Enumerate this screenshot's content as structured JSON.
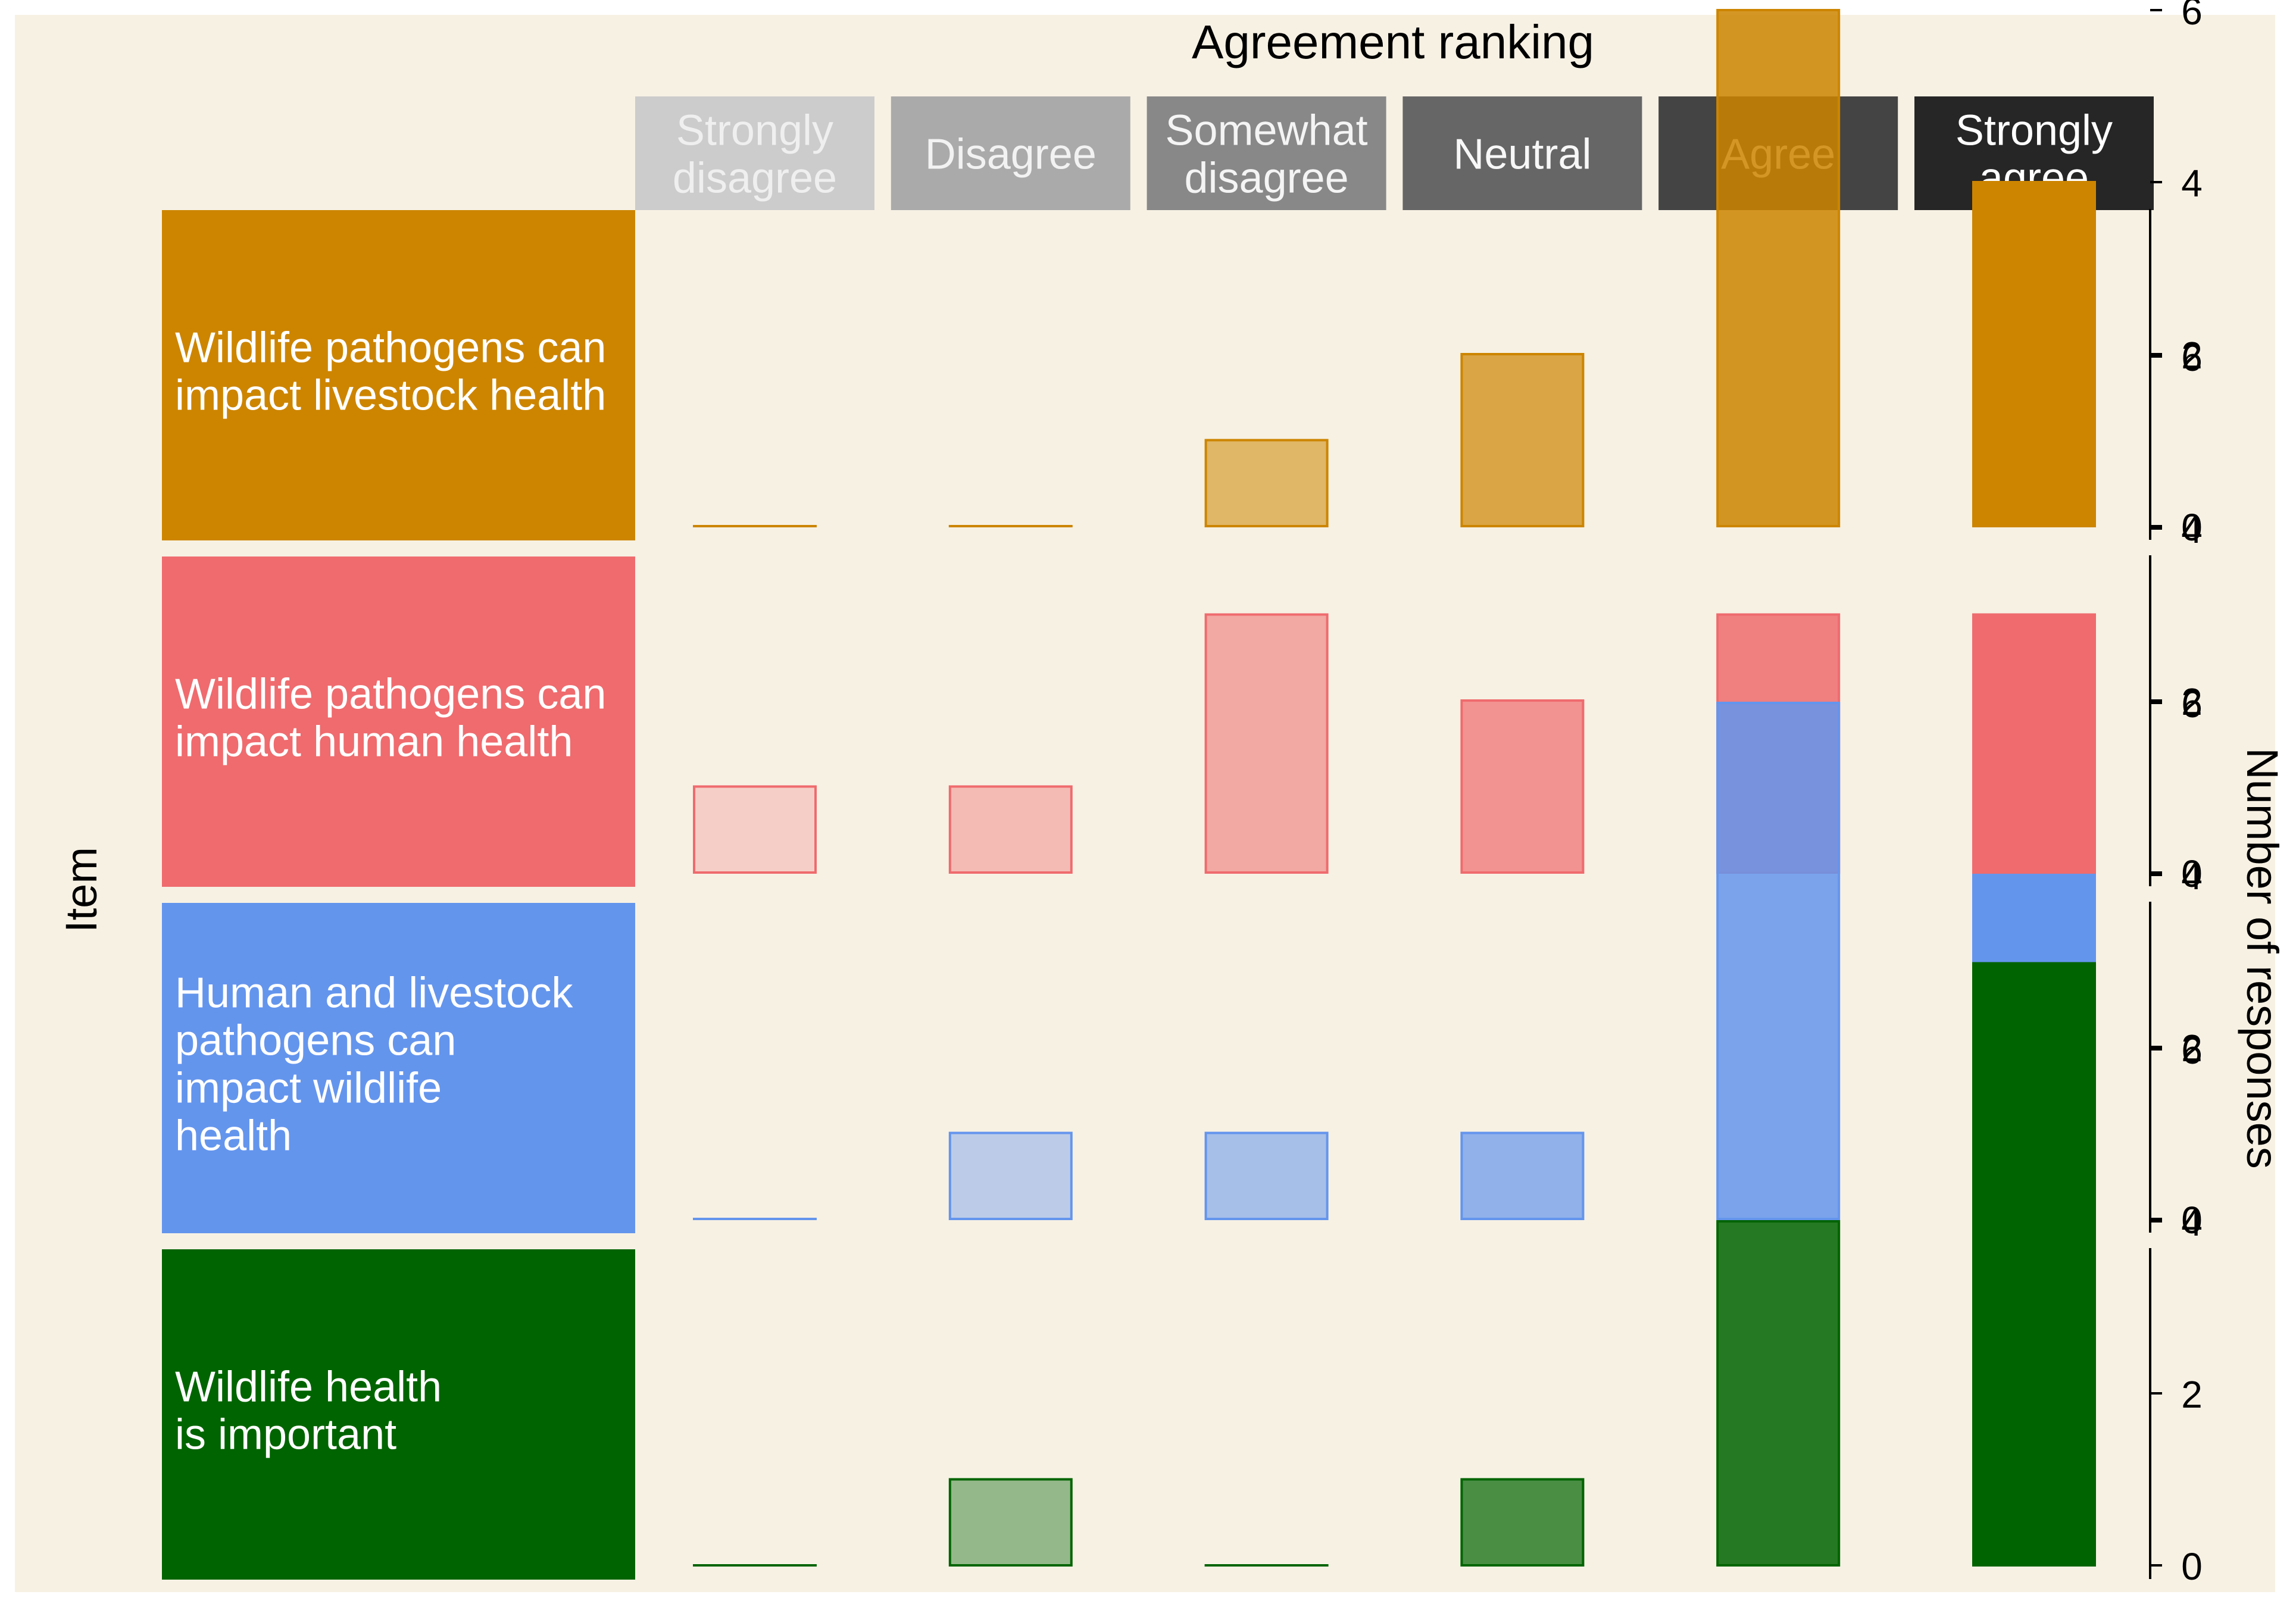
{
  "chart_data": {
    "type": "bar",
    "title": "Agreement ranking",
    "xlabel": "Item",
    "ylabel": "Number of responses",
    "ylim": [
      0,
      7.3
    ],
    "yticks": [
      0,
      2,
      4,
      6
    ],
    "grid": false,
    "categories": [
      {
        "label": [
          "Strongly",
          "disagree"
        ],
        "color": "#cccccc",
        "text_color": "#efefef"
      },
      {
        "label": [
          "Disagree"
        ],
        "color": "#aaaaaa",
        "text_color": "#f2f2f2"
      },
      {
        "label": [
          "Somewhat",
          "disagree"
        ],
        "color": "#888888",
        "text_color": "#f4f4f4"
      },
      {
        "label": [
          "Neutral"
        ],
        "color": "#666666",
        "text_color": "#f7f7f7"
      },
      {
        "label": [
          "Agree"
        ],
        "color": "#444444",
        "text_color": "#ffffff"
      },
      {
        "label": [
          "Strongly",
          "agree"
        ],
        "color": "#262626",
        "text_color": "#ffffff"
      }
    ],
    "series": [
      {
        "name": [
          "Wildlife pathogens can",
          "impact livestock health"
        ],
        "color": "#cd8500",
        "values": [
          0,
          0,
          1,
          2,
          6,
          4
        ]
      },
      {
        "name": [
          "Wildlife pathogens can",
          "impact human health"
        ],
        "color": "#ef6b6e",
        "values": [
          1,
          1,
          3,
          2,
          3,
          3
        ]
      },
      {
        "name": [
          "Human and livestock",
          "pathogens can",
          "impact wildlife",
          "health"
        ],
        "color": "#6495ed",
        "values": [
          0,
          1,
          1,
          1,
          6,
          4
        ]
      },
      {
        "name": [
          "Wildlife health",
          "is important"
        ],
        "color": "#006400",
        "values": [
          0,
          1,
          0,
          1,
          4,
          7
        ]
      }
    ],
    "fill_alpha_by_category": [
      0.25,
      0.4,
      0.55,
      0.7,
      0.85,
      1.0
    ]
  }
}
